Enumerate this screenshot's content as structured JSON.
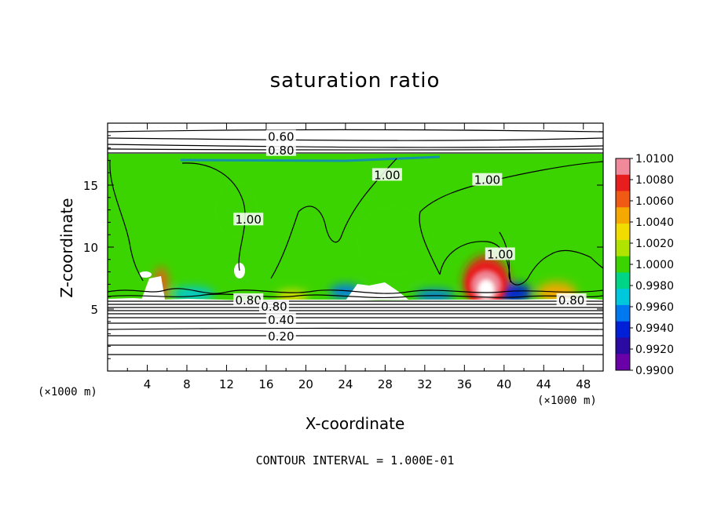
{
  "chart_data": {
    "type": "heatmap",
    "title": "saturation ratio",
    "xlabel": "X-coordinate",
    "ylabel": "Z-coordinate",
    "x_unit": "(×1000 m)",
    "y_unit": "(×1000 m)",
    "footer": "CONTOUR INTERVAL = 1.000E-01",
    "xlim": [
      0,
      50
    ],
    "ylim": [
      0,
      20
    ],
    "x_ticks": [
      4,
      8,
      12,
      16,
      20,
      24,
      28,
      32,
      36,
      40,
      44,
      48
    ],
    "x_tick_labels": [
      "4",
      "8",
      "12",
      "16",
      "20",
      "24",
      "28",
      "32",
      "36",
      "40",
      "44",
      "48"
    ],
    "y_ticks": [
      5,
      10,
      15
    ],
    "y_tick_labels": [
      "5",
      "10",
      "15"
    ],
    "colorbar": {
      "labels": [
        "1.0100",
        "1.0080",
        "1.0060",
        "1.0040",
        "1.0020",
        "1.0000",
        "0.9980",
        "0.9960",
        "0.9940",
        "0.9920",
        "0.9900"
      ],
      "min": 0.99,
      "max": 1.01,
      "colors": [
        "#f08a9a",
        "#e81e1e",
        "#f05a14",
        "#f5a800",
        "#f2dc00",
        "#b0e400",
        "#3cd400",
        "#00d486",
        "#00c8dc",
        "#0078f0",
        "#0020d8",
        "#2a0aa0",
        "#6a00a8"
      ]
    },
    "contour_labels": [
      {
        "text": "0.60",
        "x": 17.5,
        "z": 18.9
      },
      {
        "text": "0.80",
        "x": 17.5,
        "z": 17.8
      },
      {
        "text": "1.00",
        "x": 28.2,
        "z": 15.8
      },
      {
        "text": "1.00",
        "x": 38.3,
        "z": 15.4
      },
      {
        "text": "1.00",
        "x": 14.2,
        "z": 12.2
      },
      {
        "text": "1.00",
        "x": 39.6,
        "z": 9.4
      },
      {
        "text": "0.80",
        "x": 14.2,
        "z": 5.7
      },
      {
        "text": "0.80",
        "x": 16.8,
        "z": 5.2
      },
      {
        "text": "0.80",
        "x": 46.8,
        "z": 5.7
      },
      {
        "text": "0.40",
        "x": 17.5,
        "z": 4.1
      },
      {
        "text": "0.20",
        "x": 17.5,
        "z": 2.8
      }
    ],
    "anomalies": [
      {
        "x": 38.2,
        "z": 7.2,
        "value": 1.0085,
        "rx": 2.3,
        "rz": 2.1
      },
      {
        "x": 5.4,
        "z": 7.0,
        "value": 1.006,
        "rx": 0.7,
        "rz": 1.4
      },
      {
        "x": 45.3,
        "z": 6.3,
        "value": 1.0045,
        "rx": 2.0,
        "rz": 0.9
      },
      {
        "x": 18.6,
        "z": 6.0,
        "value": 1.004,
        "rx": 1.6,
        "rz": 0.5
      },
      {
        "x": 41.0,
        "z": 6.3,
        "value": 0.9925,
        "rx": 1.8,
        "rz": 0.8
      },
      {
        "x": 33.0,
        "z": 6.1,
        "value": 0.995,
        "rx": 2.0,
        "rz": 0.5
      },
      {
        "x": 8.6,
        "z": 6.2,
        "value": 0.996,
        "rx": 2.2,
        "rz": 0.6
      },
      {
        "x": 24.0,
        "z": 6.4,
        "value": 0.9945,
        "rx": 1.6,
        "rz": 0.6
      },
      {
        "x": 28.8,
        "z": 10.5,
        "value": 1.0008,
        "rx": 4.5,
        "rz": 3.5
      },
      {
        "x": 13.0,
        "z": 13.0,
        "value": 1.0007,
        "rx": 3.0,
        "rz": 3.0
      }
    ]
  }
}
